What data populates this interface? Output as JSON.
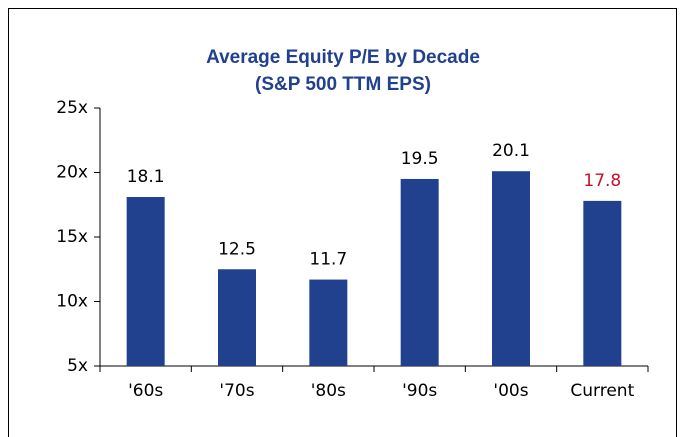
{
  "chart_data": {
    "type": "bar",
    "title": "Average Equity P/E by Decade",
    "subtitle": "(S&P 500 TTM EPS)",
    "categories": [
      "'60s",
      "'70s",
      "'80s",
      "'90s",
      "'00s",
      "Current"
    ],
    "values": [
      18.1,
      12.5,
      11.7,
      19.5,
      20.1,
      17.8
    ],
    "color": "#21418f",
    "value_label_colors": [
      "#000000",
      "#000000",
      "#000000",
      "#000000",
      "#000000",
      "#c0142c"
    ],
    "ylim": [
      5,
      25
    ],
    "yticks": [
      {
        "value": 5,
        "label": "5x"
      },
      {
        "value": 10,
        "label": "10x"
      },
      {
        "value": 15,
        "label": "15x"
      },
      {
        "value": 20,
        "label": "20x"
      },
      {
        "value": 25,
        "label": "25x"
      }
    ]
  }
}
